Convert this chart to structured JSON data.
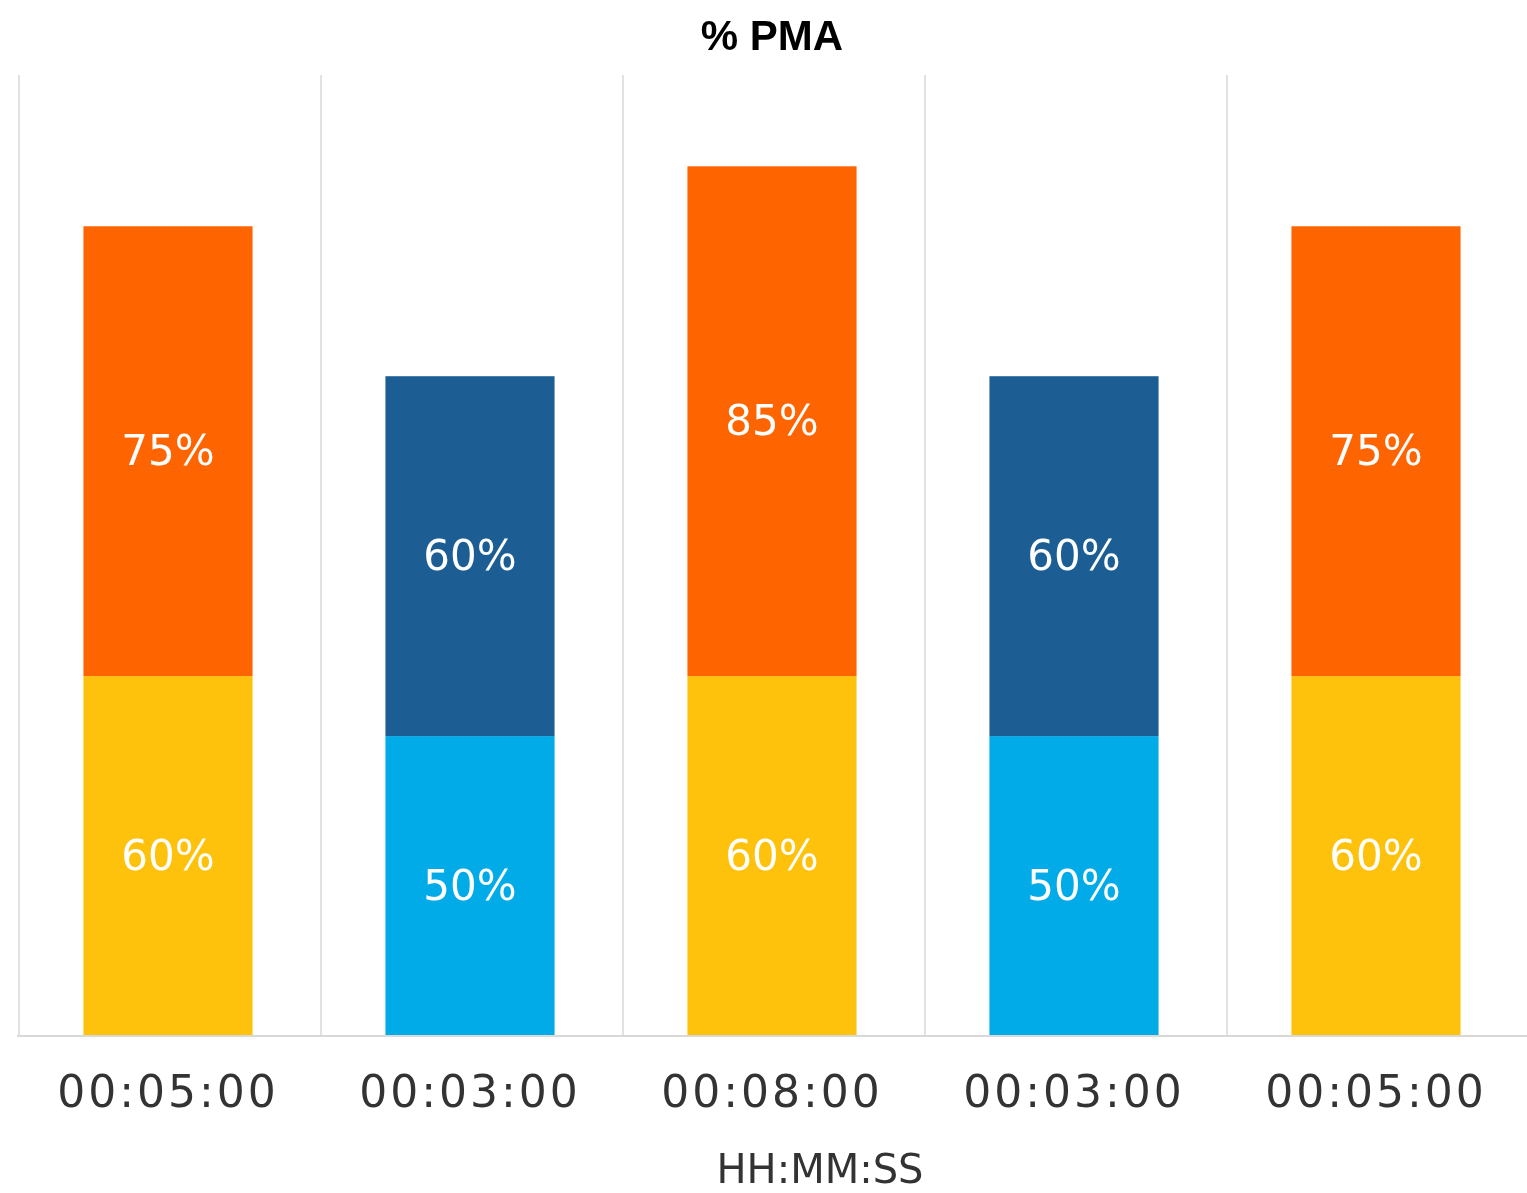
{
  "chart_data": {
    "type": "bar",
    "title": "% PMA",
    "xlabel": "HH:MM:SS",
    "categories": [
      "00:05:00",
      "00:03:00",
      "00:08:00",
      "00:03:00",
      "00:05:00"
    ],
    "series": [
      {
        "colors": [
          "#fec20c",
          "#00abe8",
          "#fec20c",
          "#00abe8",
          "#fec20c"
        ],
        "values": [
          60,
          50,
          60,
          50,
          60
        ],
        "value_labels": [
          "60%",
          "50%",
          "60%",
          "50%",
          "60%"
        ]
      },
      {
        "colors": [
          "#fe6400",
          "#1c5d93",
          "#fe6400",
          "#1c5d93",
          "#fe6400"
        ],
        "values": [
          75,
          60,
          85,
          60,
          75
        ],
        "value_labels": [
          "75%",
          "60%",
          "85%",
          "60%",
          "75%"
        ]
      }
    ],
    "stacked": true,
    "tick_labels": "x",
    "grid": "x"
  }
}
